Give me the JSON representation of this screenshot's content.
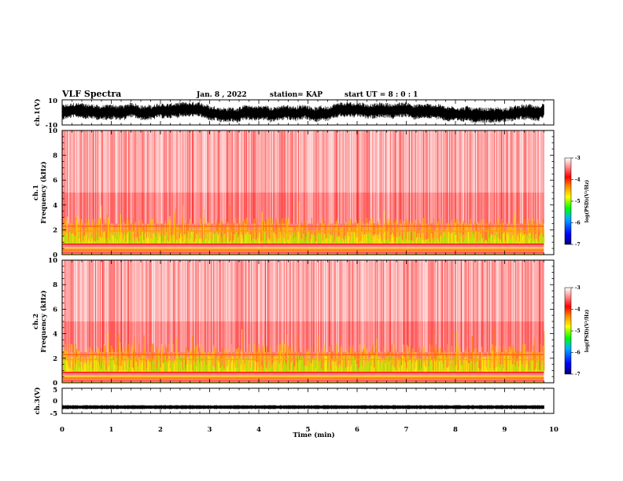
{
  "header": {
    "title": "VLF Spectra",
    "date": "Jan. 8 , 2022",
    "station": "station= KAP",
    "start_ut": "start UT =  8 : 0  : 1"
  },
  "chart_data": [
    {
      "type": "line",
      "id": "ch1_waveform",
      "ylabel": "ch.1(V)",
      "ylim": [
        -10,
        10
      ],
      "yticks": [
        "10",
        "-10"
      ],
      "xlim": [
        0,
        10
      ],
      "data_end": 9.8,
      "amplitude_range": [
        -6,
        6
      ]
    },
    {
      "type": "heatmap",
      "id": "ch1_spectrogram",
      "ylabel": "ch.1",
      "ylabel2": "Frequency (kHz)",
      "ylim": [
        0,
        10
      ],
      "yticks": [
        "0",
        "2",
        "4",
        "6",
        "8",
        "10"
      ],
      "xlim": [
        0,
        10
      ],
      "data_end": 9.8,
      "colorbar": {
        "label": "log(PSD)(V²/Hz)",
        "range": [
          -7,
          -3
        ],
        "ticks": [
          "-3",
          "-4",
          "-5",
          "-6",
          "-7"
        ],
        "colors": [
          "#000080",
          "#0000ff",
          "#00a0ff",
          "#00ff00",
          "#a0ff00",
          "#ffff00",
          "#ff8000",
          "#ff0000",
          "#ff8080",
          "#ffffff"
        ]
      }
    },
    {
      "type": "heatmap",
      "id": "ch2_spectrogram",
      "ylabel": "ch.2",
      "ylabel2": "Frequency (kHz)",
      "ylim": [
        0,
        10
      ],
      "yticks": [
        "0",
        "2",
        "4",
        "6",
        "8",
        "10"
      ],
      "xlim": [
        0,
        10
      ],
      "data_end": 9.8,
      "colorbar": {
        "label": "log(PSD)(V²/Hz)",
        "range": [
          -7,
          -3
        ],
        "ticks": [
          "-3",
          "-4",
          "-5",
          "-6",
          "-7"
        ],
        "colors": [
          "#000080",
          "#0000ff",
          "#00a0ff",
          "#00ff00",
          "#a0ff00",
          "#ffff00",
          "#ff8000",
          "#ff0000",
          "#ff8080",
          "#ffffff"
        ]
      }
    },
    {
      "type": "line",
      "id": "ch3_waveform",
      "ylabel": "ch.3(V)",
      "ylim": [
        -5,
        5
      ],
      "yticks": [
        "5",
        "0",
        "-5"
      ],
      "xlim": [
        0,
        10
      ],
      "data_end": 9.8,
      "amplitude_range": [
        -0.8,
        0.8
      ],
      "offset": -2.5
    }
  ],
  "xaxis": {
    "label": "Time (min)",
    "ticks": [
      "0",
      "1",
      "2",
      "3",
      "4",
      "5",
      "6",
      "7",
      "8",
      "9",
      "10"
    ]
  }
}
